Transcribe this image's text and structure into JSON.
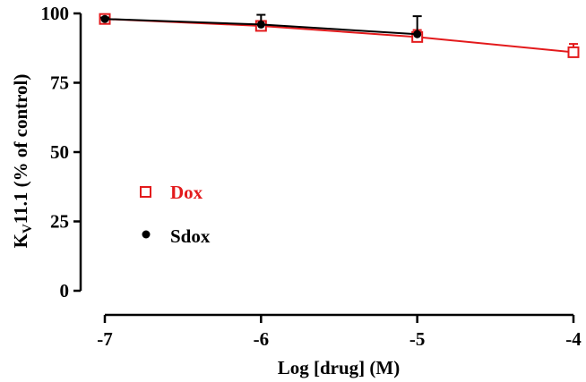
{
  "chart_data": {
    "type": "line",
    "xlabel": "Log [drug] (M)",
    "ylabel": {
      "main": "K",
      "sub": "V",
      "rest": "11.1 (% of control)"
    },
    "xlim": [
      -7,
      -4
    ],
    "ylim": [
      0,
      100
    ],
    "x_ticks": [
      -7,
      -6,
      -5,
      -4
    ],
    "x_tick_labels": [
      "-7",
      "-6",
      "-5",
      "-4"
    ],
    "y_ticks": [
      0,
      25,
      50,
      75,
      100
    ],
    "y_tick_labels": [
      "0",
      "25",
      "50",
      "75",
      "100"
    ],
    "grid": false,
    "legend_position": "center-left",
    "series": [
      {
        "name": "Dox",
        "color": "#e31a1c",
        "marker": "open-square",
        "x": [
          -7,
          -6,
          -5,
          -4
        ],
        "y": [
          98,
          95.5,
          91.5,
          86
        ],
        "err": [
          1,
          1.5,
          2.5,
          3
        ]
      },
      {
        "name": "Sdox",
        "color": "#000000",
        "marker": "filled-circle",
        "x": [
          -7,
          -6,
          -5
        ],
        "y": [
          98,
          96,
          92.5
        ],
        "err": [
          0.5,
          3.5,
          6.5
        ]
      }
    ]
  }
}
